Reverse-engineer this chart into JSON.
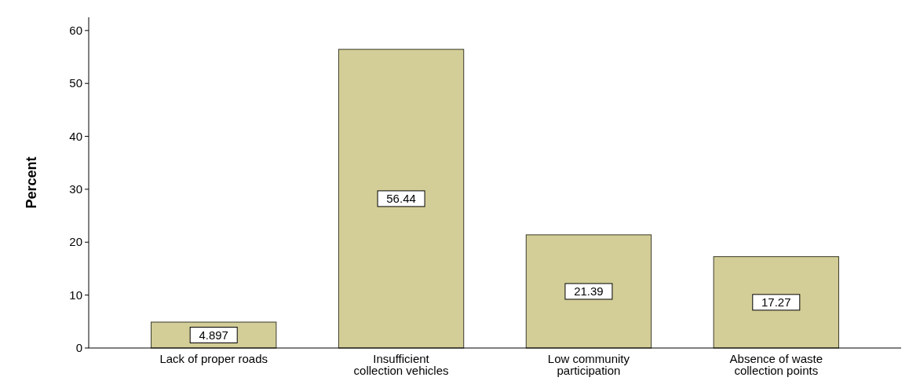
{
  "chart_data": {
    "type": "bar",
    "ylabel": "Percent",
    "categories": [
      "Lack of proper roads",
      "Insufficient collection vehicles",
      "Low community participation",
      "Absence of waste collection points"
    ],
    "values": [
      4.897,
      56.44,
      21.39,
      17.27
    ],
    "color": "#d3ce97",
    "ylim": [
      0,
      62.5
    ],
    "yticks": [
      0,
      10,
      20,
      30,
      40,
      50,
      60
    ],
    "grid": false,
    "data_labels": true
  }
}
